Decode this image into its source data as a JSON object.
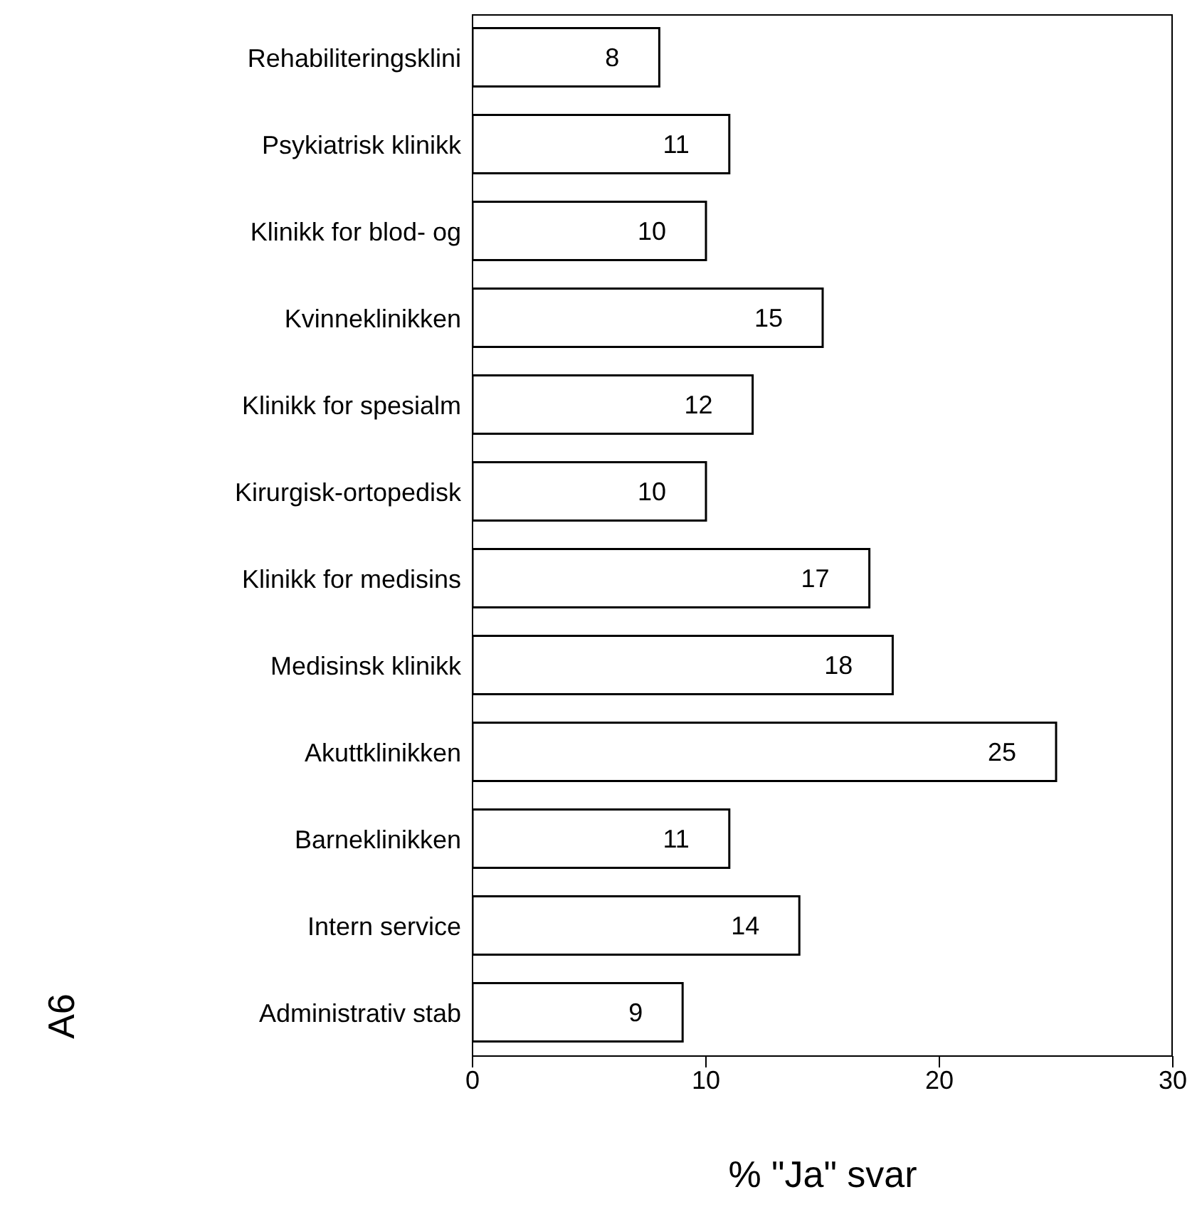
{
  "chart_data": {
    "type": "bar",
    "orientation": "horizontal",
    "xlabel": "% \"Ja\" svar",
    "ylabel": "A6",
    "categories": [
      "Rehabiliteringsklini",
      "Psykiatrisk klinikk",
      "Klinikk for blod- og",
      "Kvinneklinikken",
      "Klinikk for spesialm",
      "Kirurgisk-ortopedisk",
      "Klinikk for medisins",
      "Medisinsk klinikk",
      "Akuttklinikken",
      "Barneklinikken",
      "Intern service",
      "Administrativ stab"
    ],
    "values": [
      8,
      11,
      10,
      15,
      12,
      10,
      17,
      18,
      25,
      11,
      14,
      9
    ],
    "color": "#ffffff",
    "xlim": [
      0,
      30
    ],
    "xticks": [
      0,
      10,
      20,
      30
    ],
    "data_labels": true,
    "grid": false,
    "legend": false
  }
}
